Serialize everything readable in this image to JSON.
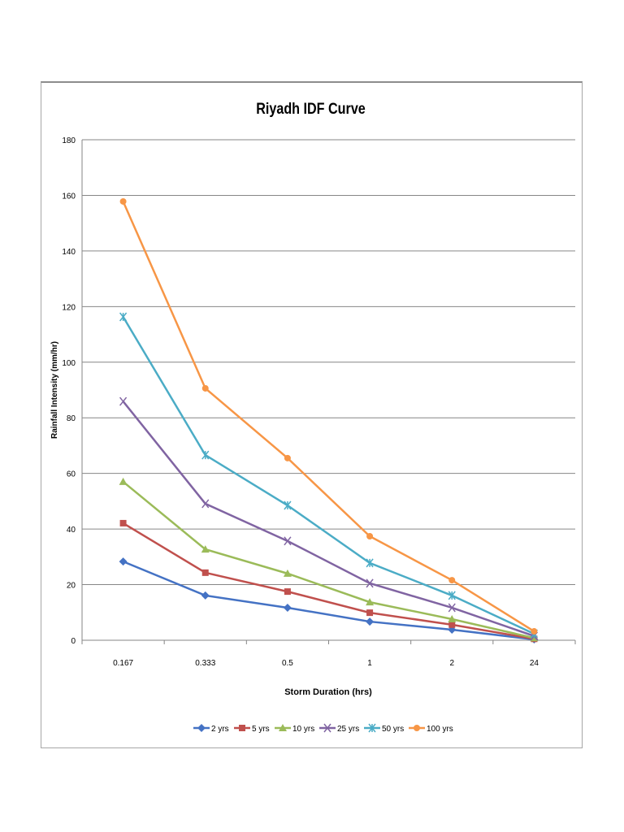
{
  "chart_data": {
    "type": "line",
    "title": "Riyadh IDF Curve",
    "xlabel": "Storm Duration (hrs)",
    "ylabel": "Rainfall Intensity (mm/hr)",
    "categories": [
      "0.167",
      "0.333",
      "0.5",
      "1",
      "2",
      "24"
    ],
    "ylim": [
      0,
      180
    ],
    "yticks": [
      0,
      20,
      40,
      60,
      80,
      100,
      120,
      140,
      160,
      180
    ],
    "grid": true,
    "legend_position": "bottom",
    "series": [
      {
        "name": "2 yrs",
        "color": "#4472c4",
        "marker": "diamond",
        "values": [
          28.3,
          16.1,
          11.7,
          6.7,
          3.8,
          0.3
        ]
      },
      {
        "name": "5 yrs",
        "color": "#c0504d",
        "marker": "square",
        "values": [
          42.1,
          24.3,
          17.5,
          9.9,
          5.6,
          0.5
        ]
      },
      {
        "name": "10 yrs",
        "color": "#9bbb59",
        "marker": "triangle",
        "values": [
          57.0,
          32.7,
          24.0,
          13.7,
          7.6,
          0.8
        ]
      },
      {
        "name": "25 yrs",
        "color": "#8064a2",
        "marker": "x",
        "values": [
          85.9,
          49.1,
          35.7,
          20.5,
          11.7,
          1.5
        ]
      },
      {
        "name": "50 yrs",
        "color": "#4bacc6",
        "marker": "star",
        "values": [
          116.3,
          66.6,
          48.5,
          27.8,
          16.1,
          2.3
        ]
      },
      {
        "name": "100 yrs",
        "color": "#f79646",
        "marker": "circle",
        "values": [
          157.8,
          90.6,
          65.5,
          37.4,
          21.6,
          3.2
        ]
      }
    ]
  }
}
